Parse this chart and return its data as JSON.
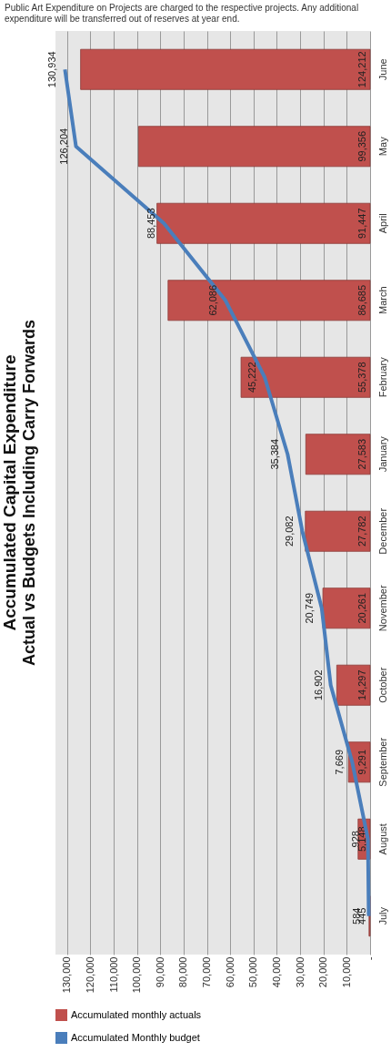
{
  "chart_data": {
    "type": "bar",
    "orientation": "horizontal",
    "title": "Accumulated Capital Expenditure",
    "subtitle": "Actual vs Budgets Including Carry Forwards",
    "annotations": [
      "Public Art Expenditure on Projects are charged to the respective projects. Any additional expenditure will be transferred out of reserves at year end."
    ],
    "categories": [
      "June",
      "May",
      "April",
      "March",
      "February",
      "January",
      "December",
      "November",
      "October",
      "September",
      "August",
      "July"
    ],
    "series": [
      {
        "name": "Accumulated monthly  actuals",
        "color": "#c0504d",
        "values": [
          124212,
          99356,
          91447,
          86685,
          55378,
          27583,
          27782,
          20261,
          14297,
          9291,
          5148,
          445
        ],
        "value_labels": [
          "124,212",
          "99,356",
          "91,447",
          "86,685",
          "55,378",
          "27,583",
          "27,782",
          "20,261",
          "14,297",
          "9,291",
          "5,148",
          "445"
        ]
      },
      {
        "name": "Accumulated Monthly budget",
        "type": "line",
        "color": "#4a7ebb",
        "values": [
          130934,
          126204,
          88453,
          62086,
          45222,
          35384,
          29082,
          20749,
          16902,
          7669,
          928,
          584
        ],
        "value_labels": [
          "130,934",
          "126,204",
          "88,453",
          "62,086",
          "45,222",
          "35,384",
          "29,082",
          "20,749",
          "16,902",
          "7,669",
          "928",
          "584"
        ]
      }
    ],
    "xlim": [
      135000,
      0
    ],
    "xticks": [
      {
        "value": 0,
        "label": "-"
      },
      {
        "value": 10000,
        "label": "10,000"
      },
      {
        "value": 20000,
        "label": "20,000"
      },
      {
        "value": 30000,
        "label": "30,000"
      },
      {
        "value": 40000,
        "label": "40,000"
      },
      {
        "value": 50000,
        "label": "50,000"
      },
      {
        "value": 60000,
        "label": "60,000"
      },
      {
        "value": 70000,
        "label": "70,000"
      },
      {
        "value": 80000,
        "label": "80,000"
      },
      {
        "value": 90000,
        "label": "90,000"
      },
      {
        "value": 100000,
        "label": "100,000"
      },
      {
        "value": 110000,
        "label": "110,000"
      },
      {
        "value": 120000,
        "label": "120,000"
      },
      {
        "value": 130000,
        "label": "130,000"
      }
    ],
    "grid": "x",
    "legend": "bottom",
    "marker": "none",
    "line_style": "solid"
  }
}
